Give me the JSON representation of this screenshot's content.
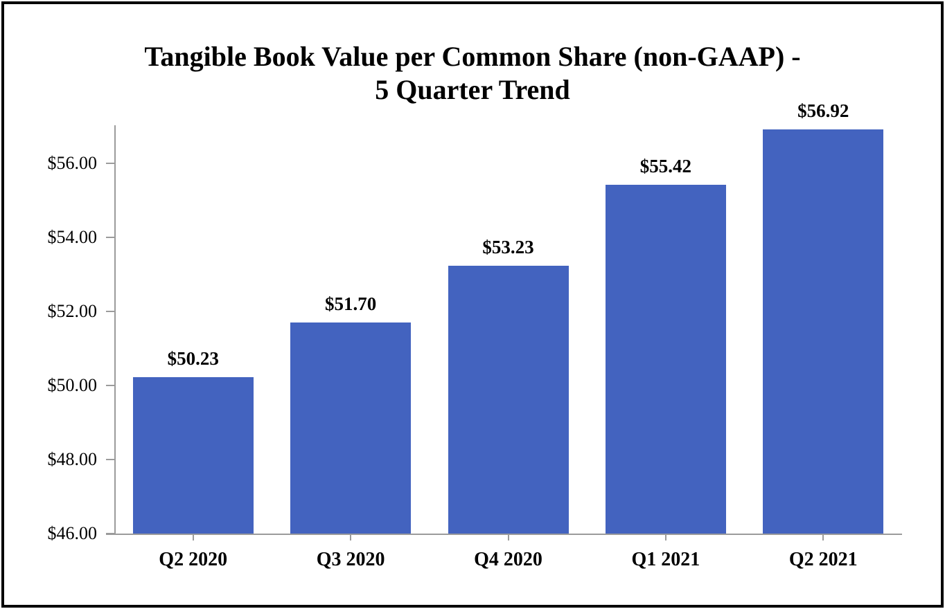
{
  "frame": {
    "background": "#FFFFFF",
    "border_color": "#000000"
  },
  "chart_data": {
    "type": "bar",
    "title": "Tangible Book Value per Common Share (non-GAAP) - 5 Quarter Trend",
    "title_lines": [
      "Tangible Book Value per Common Share (non-GAAP) -",
      "5 Quarter Trend"
    ],
    "categories": [
      "Q2 2020",
      "Q3 2020",
      "Q4 2020",
      "Q1 2021",
      "Q2 2021"
    ],
    "values": [
      50.23,
      51.7,
      53.23,
      55.42,
      56.92
    ],
    "bar_labels": [
      "$50.23",
      "$51.70",
      "$53.23",
      "$55.42",
      "$56.92"
    ],
    "y_ticks": [
      {
        "value": 46,
        "label": "$46.00"
      },
      {
        "value": 48,
        "label": "$48.00"
      },
      {
        "value": 50,
        "label": "$50.00"
      },
      {
        "value": 52,
        "label": "$52.00"
      },
      {
        "value": 54,
        "label": "$54.00"
      },
      {
        "value": 56,
        "label": "$56.00"
      }
    ],
    "ylim": [
      46,
      57.03
    ],
    "xlabel": "",
    "ylabel": "",
    "grid": false,
    "legend": false,
    "bar_color": "#4363BF",
    "axis_color": "#9B9B9B",
    "text_color": "#000000"
  }
}
